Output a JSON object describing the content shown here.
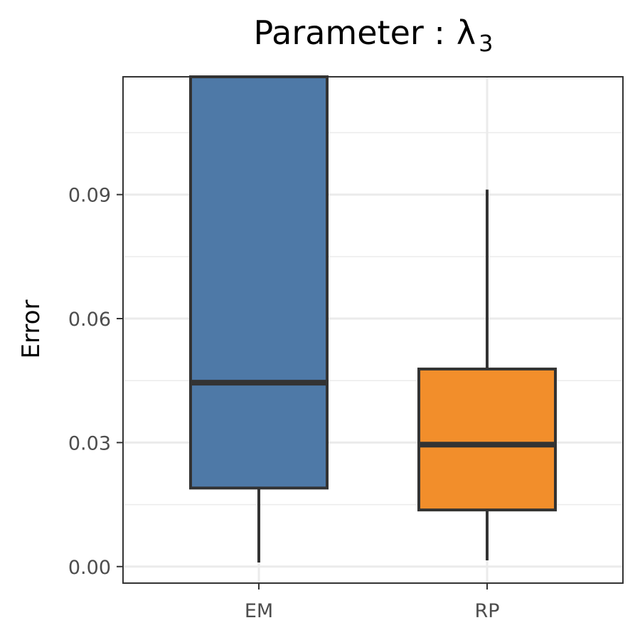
{
  "chart_data": {
    "type": "boxplot",
    "title_prefix": "Parameter :",
    "title_symbol": "λ",
    "title_subscript": "3",
    "xlabel": "",
    "ylabel": "Error",
    "ylim": [
      -0.004,
      0.1185
    ],
    "yticks": [
      0.0,
      0.03,
      0.06,
      0.09
    ],
    "ytick_labels": [
      "0.00",
      "0.03",
      "0.06",
      "0.09"
    ],
    "grid": true,
    "legend": "none",
    "categories": [
      "EM",
      "RP"
    ],
    "boxes": [
      {
        "category": "EM",
        "whisker_low": 0.001,
        "q1": 0.019,
        "median": 0.0445,
        "q3": 0.1185,
        "whisker_high": 0.1185,
        "color": "#4e79a7"
      },
      {
        "category": "RP",
        "whisker_low": 0.0015,
        "q1": 0.0137,
        "median": 0.0295,
        "q3": 0.0478,
        "whisker_high": 0.0912,
        "color": "#f28e2b"
      }
    ],
    "colors": {
      "panel_border": "#333333",
      "box_outline": "#333333",
      "grid": "#ebebeb",
      "tick_text": "#4d4d4d"
    }
  }
}
